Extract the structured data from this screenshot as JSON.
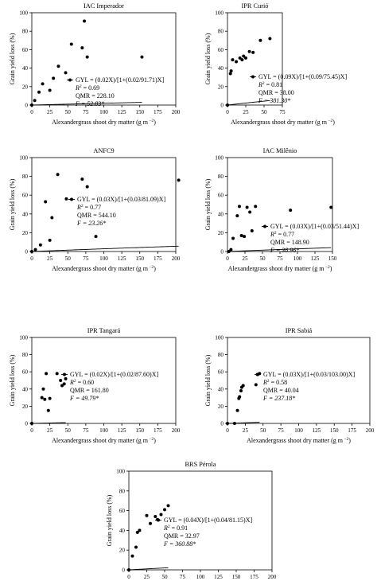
{
  "figure": {
    "equation_label": "GYL = ",
    "r2_symbol": "R",
    "r2_sup": "2",
    "r2_sep": " = ",
    "qmr_label": "QMR = ",
    "f_symbol": "F",
    "f_sep": " = "
  },
  "chart_data": [
    {
      "type": "scatter",
      "title": "IAC Imperador",
      "xlabel": "Alexandergrass shoot dry matter (g m",
      "xlabel_sup": "−2",
      "xlabel_end": ")",
      "ylabel": "Grain yield loss (%)",
      "xlim": [
        0,
        200
      ],
      "ylim": [
        0,
        100
      ],
      "xticks": [
        "0",
        "25",
        "50",
        "75",
        "100",
        "125",
        "150",
        "175",
        "200"
      ],
      "yticks": [
        "0",
        "20",
        "40",
        "60",
        "80",
        "100"
      ],
      "x": [
        0,
        4,
        8,
        14,
        18,
        22,
        30,
        37,
        43,
        47,
        51,
        56,
        58,
        60,
        62,
        64,
        68,
        72,
        154
      ],
      "y": [
        0,
        5,
        10,
        15,
        22,
        22,
        26,
        36,
        42,
        38,
        45,
        49,
        52,
        52,
        55,
        58,
        62,
        90,
        52
      ],
      "points": [
        [
          0,
          0
        ],
        [
          4,
          5
        ],
        [
          10,
          14
        ],
        [
          15,
          23
        ],
        [
          25,
          16
        ],
        [
          30,
          29
        ],
        [
          37,
          42
        ],
        [
          47,
          35
        ],
        [
          55,
          66
        ],
        [
          70,
          62
        ],
        [
          73,
          91
        ],
        [
          77,
          52
        ],
        [
          153,
          52
        ]
      ],
      "fit": {
        "i": 0.02,
        "a": 91.71
      },
      "equation": "(0.02X)/[1+(0.02/91.71)X]",
      "r2": "0.69",
      "qmr": "228.10",
      "f": "52.83*",
      "grid": false,
      "legend": "none"
    },
    {
      "type": "scatter",
      "title": "IPR Curió",
      "xlabel": "Alexandergrass shoot dry matter (g m",
      "xlabel_sup": "−2",
      "xlabel_end": ")",
      "ylabel": "Grain yield loss (%)",
      "xlim": [
        0,
        75
      ],
      "ylim": [
        0,
        100
      ],
      "xticks": [
        "0",
        "25",
        "50",
        "75"
      ],
      "yticks": [
        "0",
        "20",
        "40",
        "60",
        "80",
        "100"
      ],
      "points": [
        [
          0,
          0
        ],
        [
          4,
          34
        ],
        [
          5,
          37
        ],
        [
          7,
          49
        ],
        [
          12,
          47
        ],
        [
          17,
          51
        ],
        [
          20,
          49
        ],
        [
          22,
          53
        ],
        [
          25,
          51
        ],
        [
          30,
          58
        ],
        [
          35,
          57
        ],
        [
          45,
          70
        ],
        [
          58,
          72
        ]
      ],
      "fit": {
        "i": 0.09,
        "a": 75.45
      },
      "equation": "(0.09X)/[1+(0.09/75.45)X]",
      "r2": "0.81",
      "qmr": "38.00",
      "f": "381.30*",
      "grid": false,
      "legend": "none"
    },
    {
      "type": "scatter",
      "title": "ANFC9",
      "xlabel": "Alexandergrass shoot dry matter (g m",
      "xlabel_sup": "−2",
      "xlabel_end": ")",
      "ylabel": "Grain yield loss (%)",
      "xlim": [
        0,
        200
      ],
      "ylim": [
        0,
        100
      ],
      "xticks": [
        "0",
        "25",
        "50",
        "75",
        "100",
        "125",
        "150",
        "175",
        "200"
      ],
      "yticks": [
        "0",
        "20",
        "40",
        "60",
        "80",
        "100"
      ],
      "points": [
        [
          0,
          0
        ],
        [
          5,
          2
        ],
        [
          12,
          7
        ],
        [
          19,
          53
        ],
        [
          25,
          12
        ],
        [
          28,
          36
        ],
        [
          36,
          82
        ],
        [
          48,
          56
        ],
        [
          70,
          77
        ],
        [
          77,
          69
        ],
        [
          89,
          16
        ],
        [
          204,
          76
        ]
      ],
      "fit": {
        "i": 0.03,
        "a": 81.09
      },
      "equation": "(0.03X)/[1+(0.03/81.09)X]",
      "r2": "0.77",
      "qmr": "544.10",
      "f": "23.26*",
      "grid": false,
      "legend": "none"
    },
    {
      "type": "scatter",
      "title": "IAC Milênio",
      "xlabel": "Alexandergrass shoot dry matter (g m",
      "xlabel_sup": "−2",
      "xlabel_end": ")",
      "ylabel": "Grain yield loss (%)",
      "xlim": [
        0,
        150
      ],
      "ylim": [
        0,
        100
      ],
      "xticks": [
        "0",
        "25",
        "50",
        "75",
        "100",
        "125",
        "150"
      ],
      "yticks": [
        "0",
        "20",
        "40",
        "60",
        "80",
        "100"
      ],
      "points": [
        [
          2,
          0
        ],
        [
          5,
          2
        ],
        [
          8,
          14
        ],
        [
          14,
          38
        ],
        [
          17,
          48
        ],
        [
          20,
          17
        ],
        [
          24,
          16
        ],
        [
          28,
          47
        ],
        [
          32,
          42
        ],
        [
          35,
          22
        ],
        [
          40,
          48
        ],
        [
          90,
          44
        ],
        [
          148,
          47
        ]
      ],
      "fit": {
        "i": 0.03,
        "a": 51.44
      },
      "equation": "(0.03X)/[1+(0.03/51.44)X]",
      "r2": "0.77",
      "qmr": "148.90",
      "f": "38.96*",
      "grid": false,
      "legend": "none"
    },
    {
      "type": "scatter",
      "title": "IPR Tangará",
      "xlabel": "Alexandergrass shoot dry matter (g m",
      "xlabel_sup": "−2",
      "xlabel_end": ")",
      "ylabel": "Grain yield loss (%)",
      "xlim": [
        0,
        200
      ],
      "ylim": [
        0,
        100
      ],
      "xticks": [
        "0",
        "25",
        "50",
        "75",
        "100",
        "125",
        "150",
        "175",
        "200"
      ],
      "yticks": [
        "0",
        "20",
        "40",
        "60",
        "80",
        "100"
      ],
      "points": [
        [
          0,
          0
        ],
        [
          14,
          30
        ],
        [
          16,
          40
        ],
        [
          18,
          28
        ],
        [
          20,
          58
        ],
        [
          23,
          15
        ],
        [
          25,
          29
        ],
        [
          35,
          58
        ],
        [
          40,
          50
        ],
        [
          42,
          44
        ],
        [
          45,
          46
        ],
        [
          47,
          52
        ]
      ],
      "fit": {
        "i": 0.02,
        "a": 87.6
      },
      "equation": "(0.02X)/[1+(0.02/87.60)X]",
      "r2": "0.60",
      "qmr": "161.80",
      "f": "49.79*",
      "grid": false,
      "legend": "none"
    },
    {
      "type": "scatter",
      "title": "IPR Sabiá",
      "xlabel": "Alexandergrass shoot dry matter (g m",
      "xlabel_sup": "−2",
      "xlabel_end": ")",
      "ylabel": "Grain yield loss (%)",
      "xlim": [
        0,
        200
      ],
      "ylim": [
        0,
        100
      ],
      "xticks": [
        "0",
        "25",
        "50",
        "75",
        "100",
        "125",
        "150",
        "175",
        "200"
      ],
      "yticks": [
        "0",
        "20",
        "40",
        "60",
        "80",
        "100"
      ],
      "points": [
        [
          0,
          0
        ],
        [
          10,
          0
        ],
        [
          14,
          15
        ],
        [
          16,
          29
        ],
        [
          17,
          31
        ],
        [
          19,
          38
        ],
        [
          20,
          42
        ],
        [
          22,
          44
        ],
        [
          40,
          45
        ],
        [
          42,
          57
        ],
        [
          45,
          58
        ]
      ],
      "fit": {
        "i": 0.03,
        "a": 103.0
      },
      "equation": "(0.03X)/[1+(0.03/103.00)X]",
      "r2": "0.58",
      "qmr": "40.04",
      "f": "237.18*",
      "grid": false,
      "legend": "none"
    },
    {
      "type": "scatter",
      "title": "BRS Pérola",
      "xlabel": "Alexandergrass shoot dry matter (g m",
      "xlabel_sup": "−2",
      "xlabel_end": ")",
      "ylabel": "Grain yield loss (%)",
      "xlim": [
        0,
        200
      ],
      "ylim": [
        0,
        100
      ],
      "xticks": [
        "0",
        "25",
        "50",
        "75",
        "100",
        "125",
        "150",
        "175",
        "200"
      ],
      "yticks": [
        "0",
        "20",
        "40",
        "60",
        "80",
        "100"
      ],
      "points": [
        [
          0,
          0
        ],
        [
          5,
          14
        ],
        [
          10,
          23
        ],
        [
          12,
          38
        ],
        [
          15,
          40
        ],
        [
          25,
          55
        ],
        [
          30,
          47
        ],
        [
          37,
          54
        ],
        [
          40,
          51
        ],
        [
          45,
          56
        ],
        [
          50,
          61
        ],
        [
          55,
          65
        ]
      ],
      "fit": {
        "i": 0.04,
        "a": 81.15
      },
      "equation": "(0.04X)/[1+(0.04/81.15)X]",
      "r2": "0.91",
      "qmr": "32.97",
      "f": "360.88*",
      "grid": false,
      "legend": "none"
    }
  ]
}
